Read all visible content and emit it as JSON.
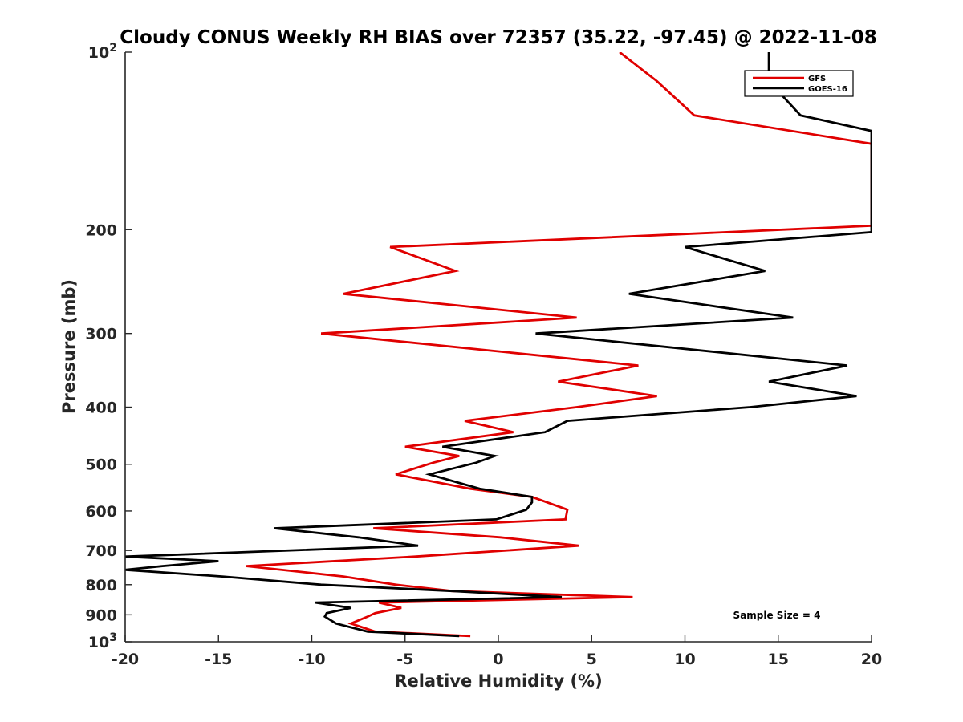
{
  "chart_data": {
    "type": "line",
    "title": "Cloudy CONUS Weekly RH BIAS over 72357 (35.22, -97.45) @ 2022-11-08",
    "xlabel": "Relative Humidity (%)",
    "ylabel": "Pressure (mb)",
    "xlim": [
      -20,
      20
    ],
    "ylim": [
      100,
      1000
    ],
    "y_scale": "log",
    "y_reversed": true,
    "grid": false,
    "legend_position": "top-right",
    "x_ticks": [
      {
        "value": -20,
        "label": "-20"
      },
      {
        "value": -15,
        "label": "-15"
      },
      {
        "value": -10,
        "label": "-10"
      },
      {
        "value": -5,
        "label": "-5"
      },
      {
        "value": 0,
        "label": "0"
      },
      {
        "value": 5,
        "label": "5"
      },
      {
        "value": 10,
        "label": "10"
      },
      {
        "value": 15,
        "label": "15"
      },
      {
        "value": 20,
        "label": "20"
      }
    ],
    "y_ticks": [
      {
        "value": 100,
        "base": "10",
        "exp": "2"
      },
      {
        "value": 200,
        "base": "200",
        "exp": ""
      },
      {
        "value": 300,
        "base": "300",
        "exp": ""
      },
      {
        "value": 400,
        "base": "400",
        "exp": ""
      },
      {
        "value": 500,
        "base": "500",
        "exp": ""
      },
      {
        "value": 600,
        "base": "600",
        "exp": ""
      },
      {
        "value": 700,
        "base": "700",
        "exp": ""
      },
      {
        "value": 800,
        "base": "800",
        "exp": ""
      },
      {
        "value": 900,
        "base": "900",
        "exp": ""
      },
      {
        "value": 1000,
        "base": "10",
        "exp": "3"
      }
    ],
    "annotation": "Sample Size = 4",
    "series": [
      {
        "name": "GFS",
        "color": "#e00000",
        "points": [
          [
            6.5,
            100
          ],
          [
            8.5,
            112
          ],
          [
            10.5,
            128
          ],
          [
            20,
            143
          ],
          [
            20,
            197
          ],
          [
            -5.8,
            214
          ],
          [
            -2.3,
            235
          ],
          [
            -8.3,
            257
          ],
          [
            4.2,
            282
          ],
          [
            -9.5,
            300
          ],
          [
            7.5,
            340
          ],
          [
            3.2,
            362
          ],
          [
            8.5,
            383
          ],
          [
            4.2,
            400
          ],
          [
            -1.8,
            422
          ],
          [
            0.8,
            441
          ],
          [
            -5.0,
            467
          ],
          [
            -2.1,
            484
          ],
          [
            -3.5,
            497
          ],
          [
            -5.5,
            520
          ],
          [
            -1.5,
            550
          ],
          [
            1.8,
            568
          ],
          [
            3.7,
            597
          ],
          [
            3.6,
            620
          ],
          [
            -6.7,
            642
          ],
          [
            0.1,
            665
          ],
          [
            4.3,
            687
          ],
          [
            -4.5,
            717
          ],
          [
            -13.5,
            744
          ],
          [
            -8.3,
            775
          ],
          [
            -5.5,
            800
          ],
          [
            -2.5,
            820
          ],
          [
            7.2,
            840
          ],
          [
            -6.4,
            858
          ],
          [
            -5.2,
            876
          ],
          [
            -6.6,
            894
          ],
          [
            -7.0,
            906
          ],
          [
            -7.9,
            931
          ],
          [
            -6.6,
            961
          ],
          [
            -1.5,
            978
          ]
        ]
      },
      {
        "name": "GOES-16",
        "color": "#000000",
        "points": [
          [
            14.5,
            100
          ],
          [
            14.5,
            112
          ],
          [
            16.2,
            128
          ],
          [
            20,
            136
          ],
          [
            20,
            202
          ],
          [
            10.0,
            214
          ],
          [
            14.3,
            235
          ],
          [
            7.0,
            257
          ],
          [
            15.8,
            282
          ],
          [
            2.0,
            300
          ],
          [
            18.7,
            340
          ],
          [
            14.5,
            362
          ],
          [
            19.2,
            383
          ],
          [
            13.5,
            400
          ],
          [
            3.7,
            422
          ],
          [
            2.5,
            441
          ],
          [
            -3.0,
            467
          ],
          [
            -0.2,
            484
          ],
          [
            -1.2,
            497
          ],
          [
            -3.7,
            520
          ],
          [
            -1.0,
            550
          ],
          [
            1.8,
            568
          ],
          [
            1.8,
            580
          ],
          [
            1.5,
            597
          ],
          [
            -0.1,
            620
          ],
          [
            -12.0,
            642
          ],
          [
            -7.5,
            665
          ],
          [
            -4.3,
            687
          ],
          [
            -20.0,
            717
          ],
          [
            -15.0,
            730
          ],
          [
            -18.0,
            744
          ],
          [
            -20.0,
            755
          ],
          [
            -14.8,
            775
          ],
          [
            -9.5,
            800
          ],
          [
            -2.5,
            820
          ],
          [
            3.4,
            840
          ],
          [
            -9.8,
            858
          ],
          [
            -7.9,
            876
          ],
          [
            -9.2,
            894
          ],
          [
            -9.3,
            906
          ],
          [
            -8.7,
            931
          ],
          [
            -7.0,
            961
          ],
          [
            -2.1,
            978
          ]
        ]
      }
    ]
  }
}
